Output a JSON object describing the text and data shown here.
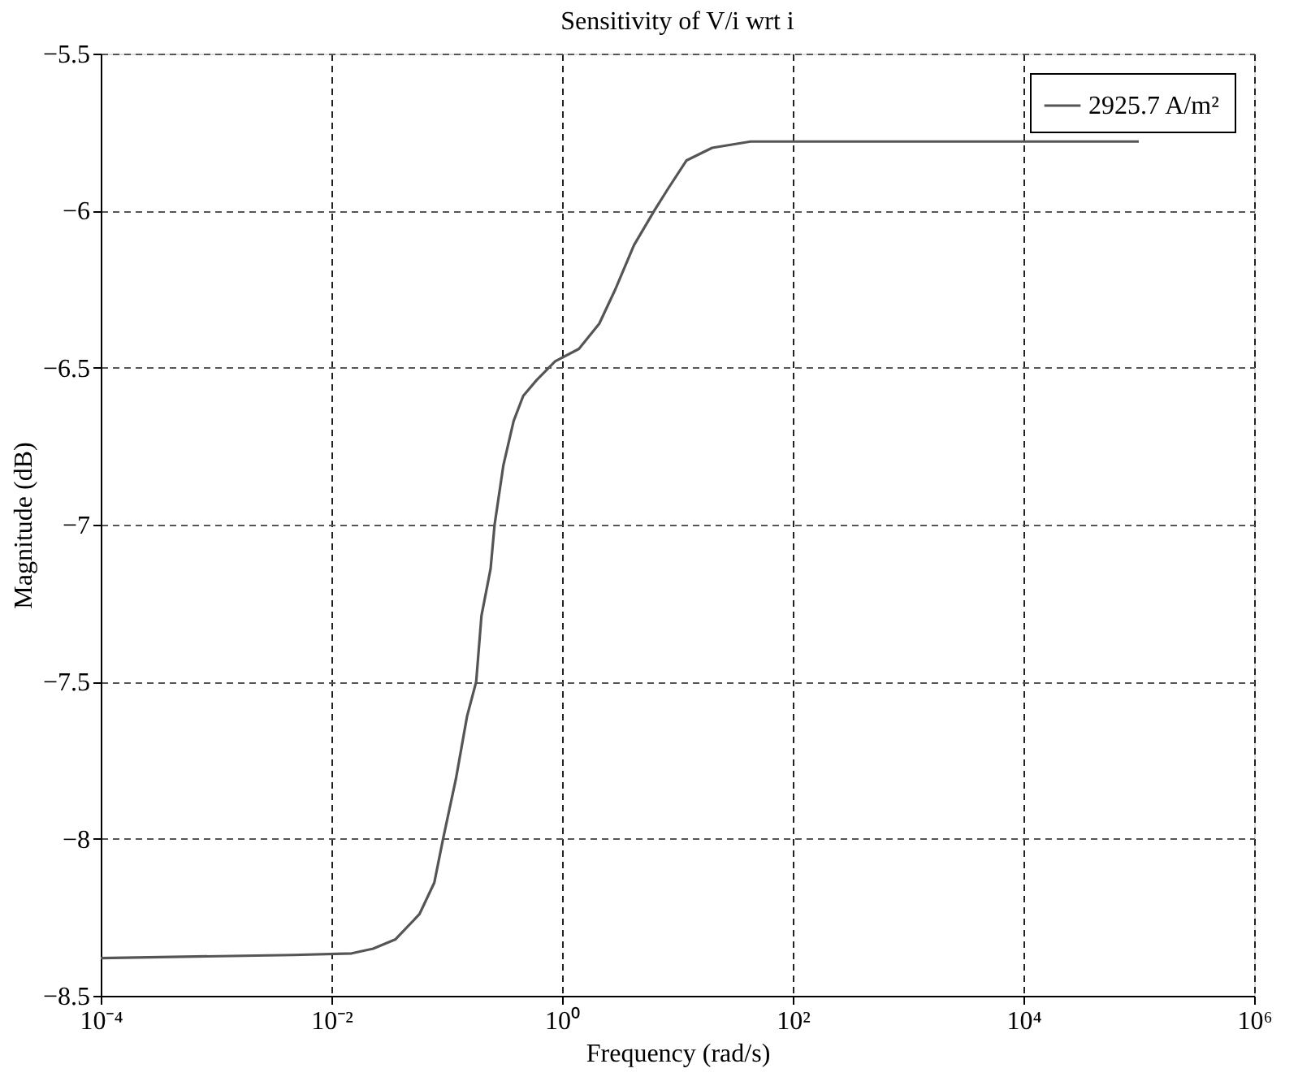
{
  "chart_data": {
    "type": "line",
    "title": "Sensitivity of V/i wrt i",
    "xlabel": "Frequency (rad/s)",
    "ylabel": "Magnitude (dB)",
    "log": "x",
    "grid": true,
    "legend": "top right",
    "line_style": "solid",
    "marker": "none",
    "xlim": [
      0.0001,
      1000000
    ],
    "xticks": [
      {
        "value": 0.0001,
        "label": "10⁻⁴"
      },
      {
        "value": 0.01,
        "label": "10⁻²"
      },
      {
        "value": 1,
        "label": "10⁰"
      },
      {
        "value": 100,
        "label": "10²"
      },
      {
        "value": 10000,
        "label": "10⁴"
      },
      {
        "value": 1000000,
        "label": "10⁶"
      }
    ],
    "ylim": [
      -8.5,
      -5.5
    ],
    "yticks": [
      -8.5,
      -8,
      -7.5,
      -7,
      -6.5,
      -6,
      -5.5
    ],
    "x": [
      0.0001,
      0.0047,
      0.015,
      0.023,
      0.036,
      0.058,
      0.078,
      0.093,
      0.12,
      0.15,
      0.18,
      0.2,
      0.24,
      0.26,
      0.31,
      0.38,
      0.46,
      0.6,
      0.87,
      1.4,
      2.1,
      2.9,
      4.2,
      6.3,
      8.3,
      12,
      20,
      43,
      100000
    ],
    "series": [
      {
        "name": "2925.7 A/m²",
        "color": "#555555",
        "values": [
          -8.38,
          -8.37,
          -8.365,
          -8.35,
          -8.32,
          -8.24,
          -8.14,
          -8.0,
          -7.81,
          -7.61,
          -7.5,
          -7.29,
          -7.14,
          -7.0,
          -6.81,
          -6.67,
          -6.59,
          -6.54,
          -6.48,
          -6.44,
          -6.36,
          -6.25,
          -6.11,
          -6.0,
          -5.93,
          -5.84,
          -5.8,
          -5.78,
          -5.78
        ]
      }
    ]
  }
}
